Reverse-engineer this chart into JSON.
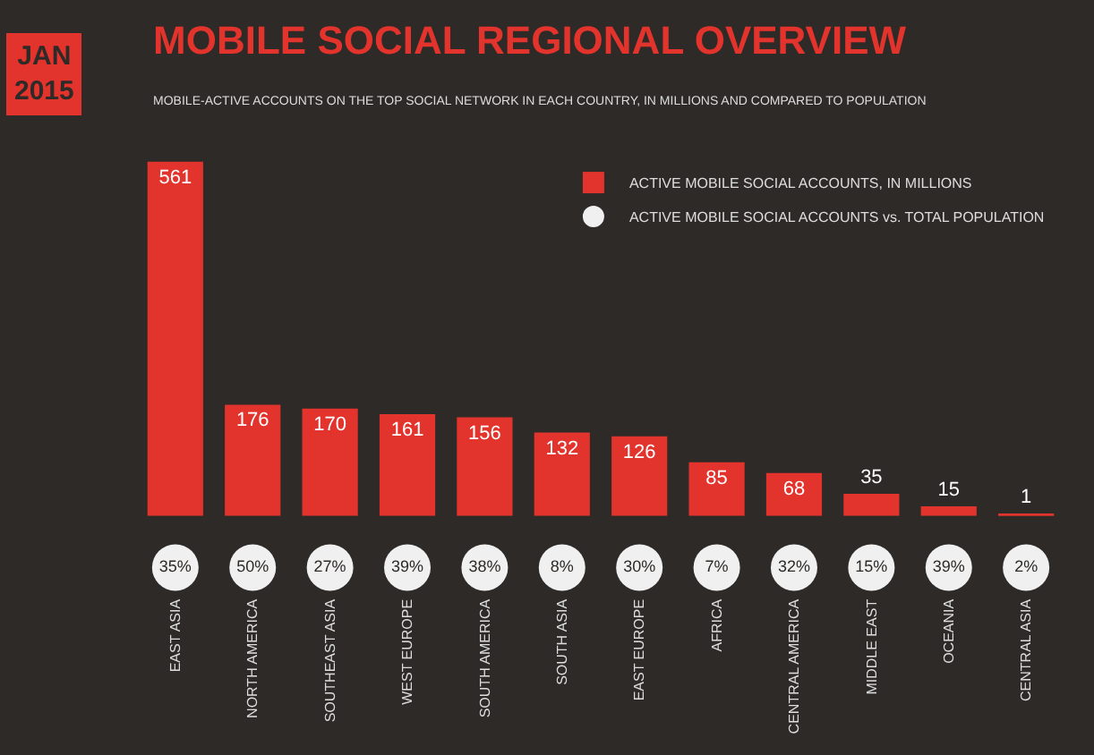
{
  "chart_data": [
    {
      "type": "bar",
      "title": "MOBILE SOCIAL REGIONAL OVERVIEW",
      "subtitle": "MOBILE-ACTIVE ACCOUNTS ON THE TOP SOCIAL NETWORK IN EACH COUNTRY, IN MILLIONS AND COMPARED TO POPULATION",
      "categories": [
        "EAST ASIA",
        "NORTH AMERICA",
        "SOUTHEAST ASIA",
        "WEST EUROPE",
        "SOUTH AMERICA",
        "SOUTH ASIA",
        "EAST EUROPE",
        "AFRICA",
        "CENTRAL AMERICA",
        "MIDDLE EAST",
        "OCEANIA",
        "CENTRAL ASIA"
      ],
      "series": [
        {
          "name": "ACTIVE MOBILE SOCIAL ACCOUNTS, IN MILLIONS",
          "color": "#e2342c",
          "values": [
            561,
            176,
            170,
            161,
            156,
            132,
            126,
            85,
            68,
            35,
            15,
            1
          ]
        }
      ],
      "data_labels": true,
      "legend": "top right",
      "annotations": [
        "JAN 2015"
      ]
    },
    {
      "type": "other",
      "series": [
        {
          "name": "ACTIVE MOBILE SOCIAL ACCOUNTS vs. TOTAL POPULATION",
          "color": "#f0f0f0",
          "values": [
            35,
            50,
            27,
            39,
            38,
            8,
            30,
            7,
            32,
            15,
            39,
            2
          ],
          "value_labels": [
            "35%",
            "50%",
            "27%",
            "39%",
            "38%",
            "8%",
            "30%",
            "7%",
            "32%",
            "15%",
            "39%",
            "2%"
          ]
        }
      ],
      "legend": "top right"
    }
  ]
}
